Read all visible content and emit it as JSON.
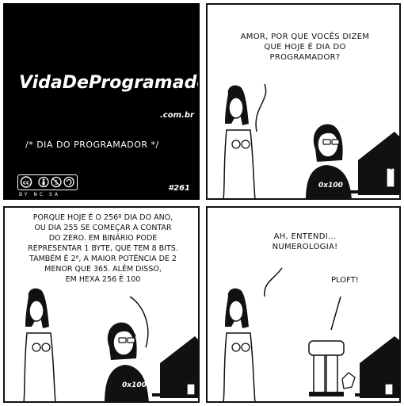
{
  "title_panel": {
    "logo_text": "VidaDeProgramador",
    "domain_suffix": ".com.br",
    "strip_title": "/* DIA DO PROGRAMADOR */",
    "license_labels": "BY NC SA",
    "strip_number": "#261"
  },
  "panel2": {
    "speech": "AMOR, POR QUE VOCÊS DIZEM\nQUE HOJE É DIA DO\nPROGRAMADOR?",
    "shirt_text": "0x100"
  },
  "panel3": {
    "speech": "PORQUE HOJE É O 256º DIA DO ANO,\nOU DIA 255 SE COMEÇAR A CONTAR\nDO ZERO. EM BINÁRIO PODE\nREPRESENTAR 1 BYTE, QUE TEM 8 BITS.\nTAMBÉM É 2⁸, A MAIOR POTÊNCIA DE 2\nMENOR QUE 365. ALÉM DISSO,\nEM HEXA 256 É 100",
    "shirt_text": "0x100"
  },
  "panel4": {
    "speech": "AH, ENTENDI...\nNUMEROLOGIA!",
    "sound_effect": "PLOFT!"
  }
}
